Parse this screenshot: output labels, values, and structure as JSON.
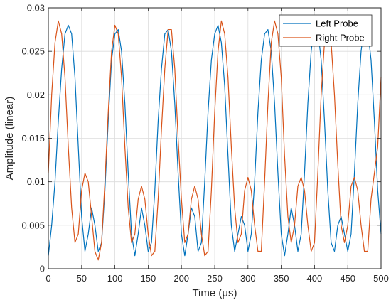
{
  "chart_data": {
    "type": "line",
    "title": "",
    "xlabel": "Time (μs)",
    "ylabel": "Amplitude (linear)",
    "xlim": [
      0,
      500
    ],
    "ylim": [
      0,
      0.03
    ],
    "grid": true,
    "legend_position": "top-right",
    "x_ticks": [
      0,
      50,
      100,
      150,
      200,
      250,
      300,
      350,
      400,
      450,
      500
    ],
    "x_tick_labels": [
      "0",
      "50",
      "100",
      "150",
      "200",
      "250",
      "300",
      "350",
      "400",
      "450",
      "500"
    ],
    "y_ticks": [
      0,
      0.005,
      0.01,
      0.015,
      0.02,
      0.025,
      0.03
    ],
    "y_tick_labels": [
      "0",
      "0.005",
      "0.01",
      "0.015",
      "0.02",
      "0.025",
      "0.03"
    ],
    "series": [
      {
        "name": "Left Probe",
        "color": "#0072BD",
        "x": [
          0,
          5,
          10,
          15,
          20,
          25,
          30,
          35,
          40,
          45,
          50,
          55,
          60,
          65,
          70,
          75,
          80,
          85,
          90,
          95,
          100,
          105,
          110,
          115,
          120,
          125,
          130,
          135,
          140,
          145,
          150,
          155,
          160,
          165,
          170,
          175,
          180,
          185,
          190,
          195,
          200,
          205,
          210,
          215,
          220,
          225,
          230,
          235,
          240,
          245,
          250,
          255,
          260,
          265,
          270,
          275,
          280,
          285,
          290,
          295,
          300,
          305,
          310,
          315,
          320,
          325,
          330,
          335,
          340,
          345,
          350,
          355,
          360,
          365,
          370,
          375,
          380,
          385,
          390,
          395,
          400,
          405,
          410,
          415,
          420,
          425,
          430,
          435,
          440,
          445,
          450,
          455,
          460,
          465,
          470,
          475,
          480,
          485,
          490,
          495,
          500
        ],
        "y": [
          0.0015,
          0.005,
          0.01,
          0.017,
          0.023,
          0.027,
          0.028,
          0.027,
          0.022,
          0.014,
          0.006,
          0.002,
          0.004,
          0.007,
          0.005,
          0.002,
          0.003,
          0.009,
          0.017,
          0.024,
          0.027,
          0.0275,
          0.025,
          0.019,
          0.011,
          0.004,
          0.0015,
          0.004,
          0.007,
          0.005,
          0.002,
          0.003,
          0.009,
          0.017,
          0.023,
          0.027,
          0.0275,
          0.025,
          0.019,
          0.011,
          0.004,
          0.0015,
          0.004,
          0.007,
          0.006,
          0.002,
          0.003,
          0.01,
          0.018,
          0.024,
          0.027,
          0.028,
          0.026,
          0.021,
          0.013,
          0.005,
          0.002,
          0.004,
          0.006,
          0.005,
          0.002,
          0.004,
          0.01,
          0.018,
          0.024,
          0.027,
          0.0275,
          0.025,
          0.019,
          0.011,
          0.004,
          0.0015,
          0.004,
          0.007,
          0.005,
          0.002,
          0.004,
          0.011,
          0.019,
          0.025,
          0.028,
          0.0275,
          0.024,
          0.017,
          0.009,
          0.003,
          0.002,
          0.005,
          0.006,
          0.004,
          0.002,
          0.004,
          0.011,
          0.019,
          0.025,
          0.028,
          0.0275,
          0.024,
          0.017,
          0.009,
          0.004
        ]
      },
      {
        "name": "Right Probe",
        "color": "#D95319",
        "x": [
          0,
          5,
          10,
          15,
          20,
          25,
          30,
          35,
          40,
          45,
          50,
          55,
          60,
          65,
          70,
          75,
          80,
          85,
          90,
          95,
          100,
          105,
          110,
          115,
          120,
          125,
          130,
          135,
          140,
          145,
          150,
          155,
          160,
          165,
          170,
          175,
          180,
          185,
          190,
          195,
          200,
          205,
          210,
          215,
          220,
          225,
          230,
          235,
          240,
          245,
          250,
          255,
          260,
          265,
          270,
          275,
          280,
          285,
          290,
          295,
          300,
          305,
          310,
          315,
          320,
          325,
          330,
          335,
          340,
          345,
          350,
          355,
          360,
          365,
          370,
          375,
          380,
          385,
          390,
          395,
          400,
          405,
          410,
          415,
          420,
          425,
          430,
          435,
          440,
          445,
          450,
          455,
          460,
          465,
          470,
          475,
          480,
          485,
          490,
          495,
          500
        ],
        "y": [
          0.011,
          0.02,
          0.026,
          0.0285,
          0.027,
          0.022,
          0.014,
          0.007,
          0.003,
          0.004,
          0.009,
          0.011,
          0.01,
          0.006,
          0.002,
          0.001,
          0.003,
          0.01,
          0.018,
          0.025,
          0.028,
          0.027,
          0.022,
          0.014,
          0.007,
          0.003,
          0.004,
          0.008,
          0.0095,
          0.008,
          0.004,
          0.0015,
          0.002,
          0.008,
          0.016,
          0.023,
          0.0275,
          0.0275,
          0.023,
          0.015,
          0.008,
          0.003,
          0.004,
          0.008,
          0.0095,
          0.008,
          0.004,
          0.0015,
          0.002,
          0.009,
          0.018,
          0.025,
          0.0285,
          0.027,
          0.022,
          0.014,
          0.007,
          0.003,
          0.004,
          0.009,
          0.0105,
          0.009,
          0.005,
          0.002,
          0.002,
          0.01,
          0.019,
          0.026,
          0.0285,
          0.027,
          0.022,
          0.013,
          0.006,
          0.003,
          0.005,
          0.0095,
          0.0105,
          0.009,
          0.005,
          0.002,
          0.003,
          0.011,
          0.02,
          0.026,
          0.028,
          0.026,
          0.02,
          0.012,
          0.005,
          0.003,
          0.005,
          0.0095,
          0.0105,
          0.009,
          0.005,
          0.002,
          0.002,
          0.008,
          0.011,
          0.014,
          0.022
        ]
      }
    ]
  }
}
